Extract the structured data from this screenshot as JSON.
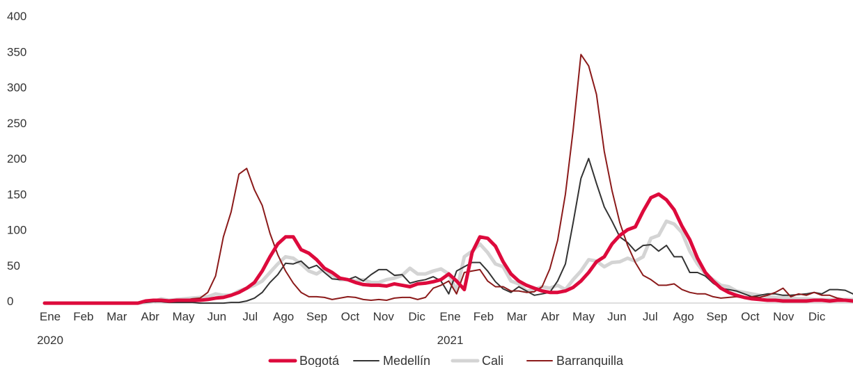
{
  "chart_data": {
    "type": "line",
    "title": "",
    "xlabel": "",
    "ylabel": "",
    "ylim": [
      0,
      400
    ],
    "yticks": [
      "0",
      "50",
      "100",
      "150",
      "200",
      "250",
      "300",
      "350",
      "400"
    ],
    "xticks": [
      "Ene",
      "Feb",
      "Mar",
      "Abr",
      "May",
      "Jun",
      "Jul",
      "Ago",
      "Sep",
      "Oct",
      "Nov",
      "Dic",
      "Ene",
      "Feb",
      "Mar",
      "Abr",
      "May",
      "Jun",
      "Jul",
      "Ago",
      "Sep",
      "Oct",
      "Nov",
      "Dic"
    ],
    "year_labels": [
      "2020",
      "2021"
    ],
    "grid": false,
    "legend_position": "bottom",
    "x": [
      1,
      5,
      9,
      13,
      14,
      15,
      16,
      17,
      18,
      19,
      20,
      21,
      22,
      23,
      24,
      25,
      26,
      27,
      28,
      29,
      30,
      31,
      32,
      33,
      34,
      35,
      36,
      37,
      38,
      39,
      40,
      41,
      42,
      43,
      44,
      45,
      46,
      47,
      48,
      49,
      50,
      51,
      52,
      53,
      54,
      55,
      56,
      57,
      58,
      59,
      60,
      61,
      62,
      63,
      64,
      65,
      66,
      67,
      68,
      69,
      70,
      71,
      72,
      73,
      74,
      75,
      76,
      77,
      78,
      79,
      80,
      81,
      82,
      83,
      84,
      85,
      86,
      87,
      88,
      89,
      90,
      91,
      92,
      93,
      94,
      95,
      96,
      97,
      98,
      99,
      100,
      101,
      102,
      103,
      104,
      105
    ],
    "series": [
      {
        "name": "Bogotá",
        "color": "#dd0a3c",
        "width": 5,
        "values": [
          -3,
          -3,
          -3,
          -3,
          0,
          1,
          1,
          0,
          1,
          1,
          1,
          1,
          2,
          4,
          5,
          8,
          12,
          18,
          26,
          42,
          62,
          80,
          90,
          90,
          72,
          67,
          58,
          46,
          40,
          32,
          30,
          26,
          23,
          22,
          22,
          21,
          24,
          22,
          20,
          24,
          25,
          27,
          30,
          38,
          28,
          16,
          68,
          90,
          88,
          77,
          55,
          38,
          28,
          22,
          18,
          14,
          12,
          12,
          14,
          19,
          28,
          40,
          55,
          62,
          80,
          92,
          100,
          104,
          126,
          145,
          150,
          142,
          128,
          105,
          86,
          60,
          40,
          28,
          18,
          12,
          8,
          5,
          3,
          2,
          1,
          1,
          0,
          0,
          0,
          0,
          1,
          1,
          0,
          1,
          1,
          0
        ]
      },
      {
        "name": "Medellín",
        "color": "#333333",
        "width": 2,
        "values": [
          -3,
          -3,
          -3,
          -3,
          -2,
          -1,
          -1,
          -2,
          -2,
          -2,
          -2,
          -3,
          -3,
          -3,
          -3,
          -2,
          -2,
          0,
          4,
          12,
          26,
          37,
          53,
          52,
          56,
          46,
          50,
          40,
          31,
          30,
          30,
          34,
          28,
          37,
          44,
          44,
          36,
          37,
          25,
          28,
          30,
          34,
          28,
          10,
          42,
          48,
          54,
          54,
          42,
          27,
          17,
          12,
          20,
          14,
          8,
          10,
          12,
          28,
          52,
          110,
          172,
          200,
          165,
          132,
          112,
          90,
          82,
          70,
          78,
          79,
          70,
          78,
          62,
          62,
          40,
          40,
          35,
          25,
          18,
          16,
          14,
          10,
          6,
          8,
          10,
          10,
          8,
          8,
          9,
          10,
          12,
          10,
          16,
          16,
          15,
          10
        ]
      },
      {
        "name": "Cali",
        "color": "#d4d4d4",
        "width": 5,
        "values": [
          -3,
          -3,
          -3,
          -3,
          -2,
          -1,
          3,
          1,
          2,
          3,
          4,
          5,
          6,
          10,
          8,
          8,
          14,
          18,
          22,
          28,
          40,
          52,
          62,
          60,
          52,
          42,
          38,
          45,
          36,
          30,
          30,
          28,
          30,
          26,
          26,
          30,
          32,
          36,
          46,
          38,
          38,
          42,
          45,
          38,
          14,
          62,
          70,
          80,
          68,
          52,
          48,
          28,
          24,
          14,
          16,
          20,
          18,
          22,
          16,
          30,
          42,
          58,
          56,
          48,
          54,
          55,
          60,
          56,
          62,
          88,
          92,
          112,
          108,
          96,
          70,
          52,
          38,
          30,
          22,
          20,
          14,
          12,
          10,
          8,
          6,
          5,
          5,
          4,
          3,
          3,
          2,
          2,
          2,
          2,
          2,
          2
        ]
      },
      {
        "name": "Barranquilla",
        "color": "#8b1a1a",
        "width": 2,
        "values": [
          -3,
          -3,
          -3,
          -3,
          -1,
          0,
          1,
          1,
          1,
          1,
          3,
          4,
          12,
          35,
          90,
          125,
          178,
          186,
          156,
          134,
          95,
          65,
          42,
          25,
          12,
          6,
          6,
          5,
          2,
          4,
          6,
          5,
          2,
          1,
          2,
          1,
          4,
          5,
          5,
          2,
          5,
          18,
          22,
          28,
          10,
          40,
          42,
          44,
          28,
          20,
          20,
          14,
          14,
          12,
          13,
          20,
          45,
          85,
          150,
          240,
          346,
          330,
          290,
          210,
          155,
          110,
          78,
          54,
          36,
          30,
          22,
          22,
          24,
          16,
          12,
          10,
          10,
          6,
          4,
          5,
          6,
          4,
          6,
          5,
          8,
          12,
          18,
          6,
          10,
          8,
          12,
          8,
          8,
          4,
          2,
          0
        ]
      }
    ]
  }
}
